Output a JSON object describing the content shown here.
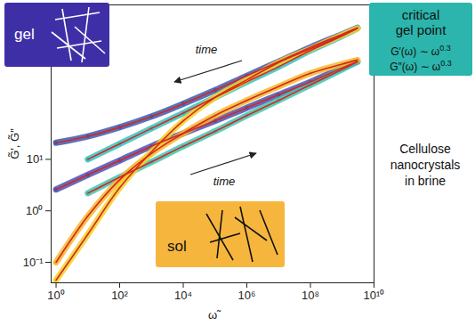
{
  "chart_data": {
    "type": "line",
    "x_label": "ω̃",
    "y_label": "G̃′, G̃″",
    "log": true,
    "xlim": [
      0.7,
      10000000000
    ],
    "ylim": [
      0.04,
      10000
    ],
    "xticks": [
      {
        "value": 1,
        "label": "10⁰"
      },
      {
        "value": 100,
        "label": "10²"
      },
      {
        "value": 10000,
        "label": "10⁴"
      },
      {
        "value": 1000000,
        "label": "10⁶"
      },
      {
        "value": 100000000,
        "label": "10⁸"
      },
      {
        "value": 10000000000,
        "label": "10¹⁰"
      }
    ],
    "yticks": [
      {
        "value": 0.1,
        "label": "10⁻¹"
      },
      {
        "value": 1,
        "label": "10⁰"
      },
      {
        "value": 10,
        "label": "10¹"
      }
    ],
    "x": [
      1,
      10,
      100,
      1000,
      10000,
      100000,
      1000000,
      10000000,
      100000000,
      1000000000,
      3000000000
    ],
    "series": [
      {
        "type": "line",
        "marker": "circle",
        "color": "#3a5bb0",
        "values": [
          21,
          28,
          42,
          68,
          120,
          220,
          420,
          790,
          1500,
          2700,
          3600
        ]
      },
      {
        "type": "line",
        "marker": "circle",
        "color": "#4a52b5",
        "values": [
          2.6,
          5.0,
          9.5,
          18,
          32,
          56,
          100,
          180,
          320,
          600,
          790
        ]
      },
      {
        "type": "line",
        "marker": "circle",
        "color": "#35c2c0",
        "values": [
          null,
          10,
          20,
          40,
          79,
          160,
          320,
          630,
          1300,
          2500,
          3500
        ]
      },
      {
        "type": "line",
        "marker": "circle",
        "color": "#3fc4b0",
        "values": [
          null,
          2.2,
          4.5,
          8.9,
          18,
          35,
          71,
          140,
          280,
          560,
          790
        ]
      },
      {
        "type": "line",
        "marker": "circle",
        "color": "#f5b82e",
        "values": [
          0.1,
          0.79,
          4.0,
          13,
          32,
          71,
          140,
          260,
          470,
          710,
          850
        ]
      },
      {
        "type": "line",
        "marker": "circle",
        "color": "#f2d12a",
        "values": [
          0.045,
          0.35,
          2.8,
          14,
          56,
          160,
          350,
          760,
          1400,
          2600,
          3500
        ]
      },
      {
        "type": "line",
        "line_style": "solid",
        "color": "#d7261e",
        "values": [
          21,
          28,
          42,
          68,
          120,
          220,
          420,
          790,
          1500,
          2700,
          3600
        ]
      },
      {
        "type": "line",
        "line_style": "solid",
        "color": "#d7261e",
        "values": [
          2.6,
          5.0,
          9.5,
          18,
          32,
          56,
          100,
          180,
          320,
          600,
          790
        ]
      },
      {
        "type": "line",
        "line_style": "solid",
        "color": "#d7261e",
        "values": [
          null,
          10,
          20,
          40,
          79,
          160,
          320,
          630,
          1300,
          2500,
          3500
        ]
      },
      {
        "type": "line",
        "line_style": "solid",
        "color": "#d7261e",
        "values": [
          null,
          2.2,
          4.5,
          8.9,
          18,
          35,
          71,
          140,
          280,
          560,
          790
        ]
      },
      {
        "type": "line",
        "line_style": "solid",
        "color": "#d7261e",
        "values": [
          0.1,
          0.79,
          4.0,
          13,
          32,
          71,
          140,
          260,
          470,
          710,
          850
        ]
      },
      {
        "type": "line",
        "line_style": "solid",
        "color": "#d7261e",
        "values": [
          0.045,
          0.35,
          2.8,
          14,
          56,
          160,
          350,
          760,
          1400,
          2600,
          3500
        ]
      }
    ],
    "annotations": {
      "gel": {
        "text": "gel",
        "color": "#3f2fa6"
      },
      "critical": {
        "color": "#2bb5ac",
        "lines": [
          "critical",
          "gel point"
        ],
        "formulas": [
          {
            "base": "G′(ω) ∼ ω",
            "exponent": 0.3
          },
          {
            "base": "G″(ω) ∼ ω",
            "exponent": 0.3
          }
        ]
      },
      "sol": {
        "text": "sol",
        "color": "#f6b63d"
      },
      "time_arrows": [
        "time",
        "time"
      ],
      "note": [
        "Cellulose",
        "nanocrystals",
        "in brine"
      ]
    }
  }
}
